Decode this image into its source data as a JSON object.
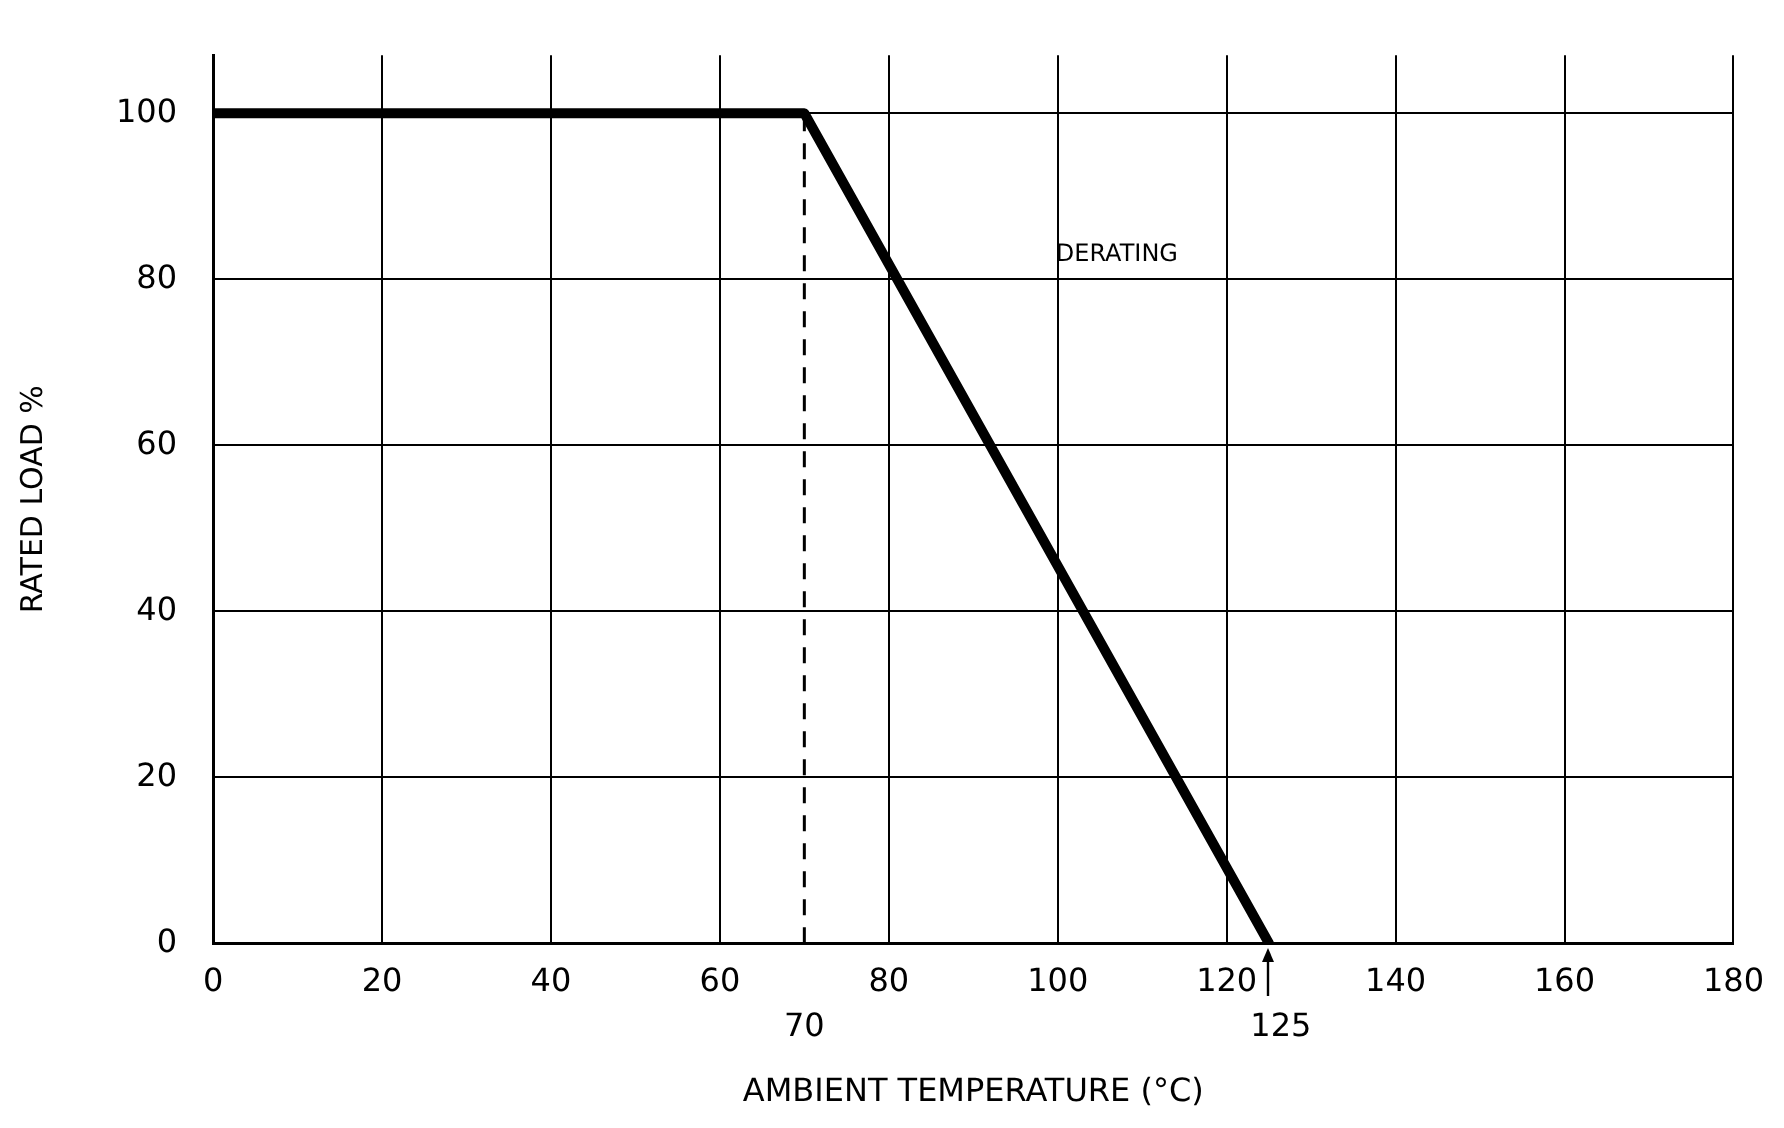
{
  "chart_data": {
    "type": "line",
    "xlabel": "AMBIENT TEMPERATURE (°C)",
    "ylabel": "RATED LOAD %",
    "x": [
      0,
      70,
      125
    ],
    "series": [
      {
        "color": "#000000",
        "values": [
          100,
          100,
          0
        ]
      }
    ],
    "xlim": [
      0,
      180
    ],
    "xticks": [
      0,
      20,
      40,
      60,
      80,
      100,
      120,
      140,
      160,
      180
    ],
    "ylim": [
      0,
      107
    ],
    "yticks": [
      0,
      20,
      40,
      60,
      80,
      100
    ],
    "grid": true,
    "legend": false,
    "marker": "none",
    "line_style": "solid",
    "ref_lines": [
      {
        "axis": "x",
        "value": 70,
        "label": "70",
        "color": "#000000",
        "line_style": "dashed"
      }
    ],
    "annotations": [
      "DERATING",
      {
        "text": "125",
        "x": 125,
        "y": 0
      }
    ]
  }
}
